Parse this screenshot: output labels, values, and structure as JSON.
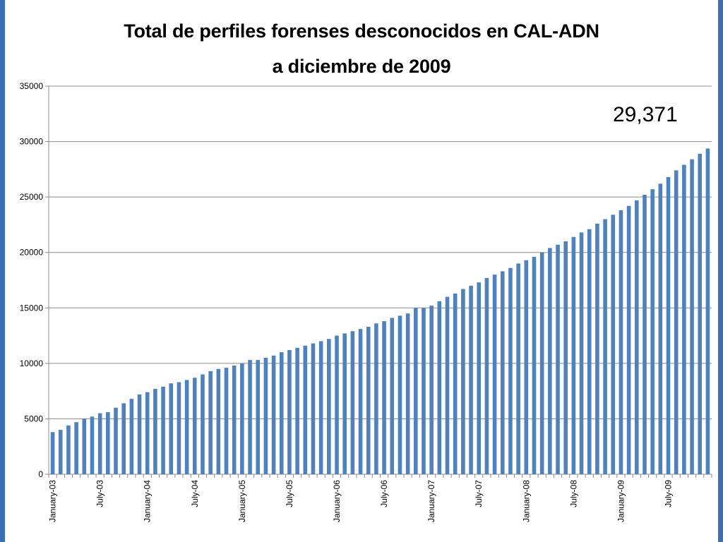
{
  "chart_data": {
    "type": "bar",
    "title_line1": "Total de perfiles forenses desconocidos en CAL-ADN",
    "title_line2": "a diciembre de 2009",
    "annotation": "29,371",
    "ylim": [
      0,
      35000
    ],
    "y_ticks": [
      "0",
      "5000",
      "10000",
      "15000",
      "20000",
      "25000",
      "30000",
      "35000"
    ],
    "x_tick_labels": [
      "January-03",
      "July-03",
      "January-04",
      "July-04",
      "January-05",
      "July-05",
      "January-06",
      "July-06",
      "January-07",
      "July-07",
      "January-08",
      "July-08",
      "January-09",
      "July-09"
    ],
    "categories": [
      "Jan-03",
      "Feb-03",
      "Mar-03",
      "Apr-03",
      "May-03",
      "Jun-03",
      "Jul-03",
      "Aug-03",
      "Sep-03",
      "Oct-03",
      "Nov-03",
      "Dec-03",
      "Jan-04",
      "Feb-04",
      "Mar-04",
      "Apr-04",
      "May-04",
      "Jun-04",
      "Jul-04",
      "Aug-04",
      "Sep-04",
      "Oct-04",
      "Nov-04",
      "Dec-04",
      "Jan-05",
      "Feb-05",
      "Mar-05",
      "Apr-05",
      "May-05",
      "Jun-05",
      "Jul-05",
      "Aug-05",
      "Sep-05",
      "Oct-05",
      "Nov-05",
      "Dec-05",
      "Jan-06",
      "Feb-06",
      "Mar-06",
      "Apr-06",
      "May-06",
      "Jun-06",
      "Jul-06",
      "Aug-06",
      "Sep-06",
      "Oct-06",
      "Nov-06",
      "Dec-06",
      "Jan-07",
      "Feb-07",
      "Mar-07",
      "Apr-07",
      "May-07",
      "Jun-07",
      "Jul-07",
      "Aug-07",
      "Sep-07",
      "Oct-07",
      "Nov-07",
      "Dec-07",
      "Jan-08",
      "Feb-08",
      "Mar-08",
      "Apr-08",
      "May-08",
      "Jun-08",
      "Jul-08",
      "Aug-08",
      "Sep-08",
      "Oct-08",
      "Nov-08",
      "Dec-08",
      "Jan-09",
      "Feb-09",
      "Mar-09",
      "Apr-09",
      "May-09",
      "Jun-09",
      "Jul-09",
      "Aug-09",
      "Sep-09",
      "Oct-09",
      "Nov-09",
      "Dec-09"
    ],
    "values": [
      3800,
      4000,
      4400,
      4700,
      5000,
      5200,
      5500,
      5600,
      6000,
      6400,
      6800,
      7200,
      7400,
      7700,
      7900,
      8200,
      8300,
      8500,
      8700,
      9000,
      9300,
      9500,
      9600,
      9800,
      10000,
      10300,
      10300,
      10500,
      10700,
      11000,
      11200,
      11400,
      11600,
      11800,
      12000,
      12200,
      12500,
      12700,
      12900,
      13100,
      13300,
      13600,
      13800,
      14100,
      14300,
      14500,
      15000,
      15000,
      15200,
      15600,
      16000,
      16300,
      16700,
      17000,
      17300,
      17700,
      18000,
      18300,
      18600,
      19000,
      19300,
      19600,
      20000,
      20400,
      20700,
      21000,
      21400,
      21800,
      22100,
      22600,
      23000,
      23400,
      23800,
      24200,
      24700,
      25200,
      25700,
      26200,
      26800,
      27400,
      27900,
      28400,
      28900,
      29371
    ],
    "grid": true,
    "bar_color": "#4f81bd"
  }
}
